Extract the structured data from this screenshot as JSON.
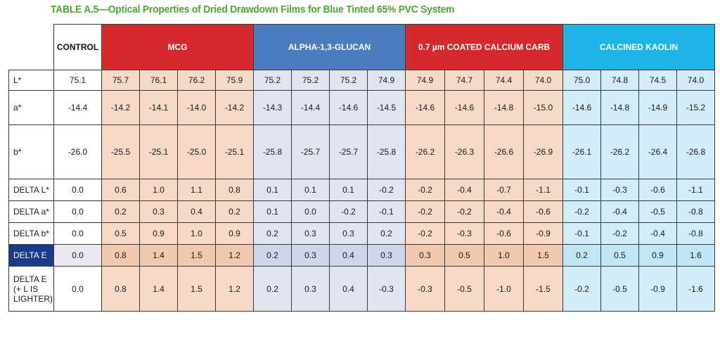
{
  "title": "TABLE A.5—Optical Properties of Dried Drawdown Films for Blue Tinted 65% PVC System",
  "headers": {
    "control": "CONTROL",
    "groups": [
      "MCG",
      "ALPHA-1,3-GLUCAN",
      "0.7 µm COATED CALCIUM CARB",
      "CALCINED KAOLIN"
    ]
  },
  "colors": {
    "title": "#4aa832",
    "mcg": "#d42a2d",
    "glucan": "#4a7cbf",
    "calcium_carb": "#d42a2d",
    "kaolin": "#1fb4e8",
    "delta_e_label": "#1a3a8c"
  },
  "rows": [
    {
      "label": "L*",
      "control": "75.1",
      "values": [
        "75.7",
        "76.1",
        "76.2",
        "75.9",
        "75.2",
        "75.2",
        "75.2",
        "74.9",
        "74.9",
        "74.7",
        "74.4",
        "74.0",
        "75.0",
        "74.8",
        "74.5",
        "74.0"
      ]
    },
    {
      "label": "a*",
      "control": "-14.4",
      "values": [
        "-14.2",
        "-14.1",
        "-14.0",
        "-14.2",
        "-14.3",
        "-14.4",
        "-14.6",
        "-14.5",
        "-14.6",
        "-14.6",
        "-14.8",
        "-15.0",
        "-14.6",
        "-14.8",
        "-14.9",
        "-15.2"
      ]
    },
    {
      "label": "b*",
      "control": "-26.0",
      "values": [
        "-25.5",
        "-25.1",
        "-25.0",
        "-25.1",
        "-25.8",
        "-25.7",
        "-25.7",
        "-25.8",
        "-26.2",
        "-26.3",
        "-26.6",
        "-26.9",
        "-26.1",
        "-26.2",
        "-26.4",
        "-26.8"
      ]
    },
    {
      "label": "DELTA L*",
      "control": "0.0",
      "values": [
        "0.6",
        "1.0",
        "1.1",
        "0.8",
        "0.1",
        "0.1",
        "0.1",
        "-0.2",
        "-0.2",
        "-0.4",
        "-0.7",
        "-1.1",
        "-0.1",
        "-0.3",
        "-0.6",
        "-1.1"
      ]
    },
    {
      "label": "DELTA a*",
      "control": "0.0",
      "values": [
        "0.2",
        "0.3",
        "0.4",
        "0.2",
        "0.1",
        "0.0",
        "-0.2",
        "-0.1",
        "-0.2",
        "-0.2",
        "-0.4",
        "-0.6",
        "-0.2",
        "-0.4",
        "-0.5",
        "-0.8"
      ]
    },
    {
      "label": "DELTA b*",
      "control": "0.0",
      "values": [
        "0.5",
        "0.9",
        "1.0",
        "0.9",
        "0.2",
        "0.3",
        "0.3",
        "0.2",
        "-0.2",
        "-0.3",
        "-0.6",
        "-0.9",
        "-0.1",
        "-0.2",
        "-0.4",
        "-0.8"
      ]
    },
    {
      "label": "DELTA E",
      "control": "0.0",
      "values": [
        "0.8",
        "1.4",
        "1.5",
        "1.2",
        "0.2",
        "0.3",
        "0.4",
        "0.3",
        "0.3",
        "0.5",
        "1.0",
        "1.5",
        "0.2",
        "0.5",
        "0.9",
        "1.6"
      ]
    },
    {
      "label_lines": [
        "DELTA E",
        "(+ L IS",
        "LIGHTER)"
      ],
      "control": "0.0",
      "values": [
        "0.8",
        "1.4",
        "1.5",
        "1.2",
        "0.2",
        "0.3",
        "0.4",
        "-0.3",
        "-0.3",
        "-0.5",
        "-1.0",
        "-1.5",
        "-0.2",
        "-0.5",
        "-0.9",
        "-1.6"
      ]
    }
  ]
}
